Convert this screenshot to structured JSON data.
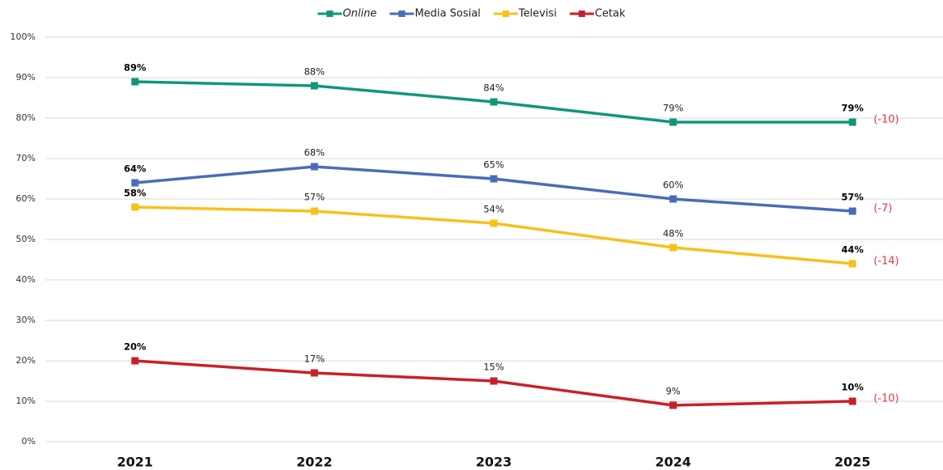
{
  "chart_data": {
    "type": "line",
    "categories": [
      "2021",
      "2022",
      "2023",
      "2024",
      "2025"
    ],
    "series": [
      {
        "name": "Online",
        "color": "#11967a",
        "values": [
          89,
          88,
          84,
          79,
          79
        ],
        "value_labels": [
          "89%",
          "88%",
          "84%",
          "79%",
          "79%"
        ],
        "annotation": "(-10)"
      },
      {
        "name": "Media Sosial",
        "color": "#4a6cb8",
        "values": [
          64,
          68,
          65,
          60,
          57
        ],
        "value_labels": [
          "64%",
          "68%",
          "65%",
          "60%",
          "57%"
        ],
        "annotation": "(-7)"
      },
      {
        "name": "Televisi",
        "color": "#f7c11a",
        "values": [
          58,
          57,
          54,
          48,
          44
        ],
        "value_labels": [
          "58%",
          "57%",
          "54%",
          "48%",
          "44%"
        ],
        "annotation": "(-14)"
      },
      {
        "name": "Cetak",
        "color": "#c8202a",
        "values": [
          20,
          17,
          15,
          9,
          10
        ],
        "value_labels": [
          "20%",
          "17%",
          "15%",
          "9%",
          "10%"
        ],
        "annotation": "(-10)"
      }
    ],
    "ylim": [
      0,
      100
    ],
    "yticks": [
      {
        "value": 0,
        "label": "0%"
      },
      {
        "value": 10,
        "label": "10%"
      },
      {
        "value": 20,
        "label": "20%"
      },
      {
        "value": 30,
        "label": "30%"
      },
      {
        "value": 40,
        "label": "40%"
      },
      {
        "value": 50,
        "label": "50%"
      },
      {
        "value": 60,
        "label": "60%"
      },
      {
        "value": 70,
        "label": "70%"
      },
      {
        "value": 80,
        "label": "80%"
      },
      {
        "value": 90,
        "label": "90%"
      },
      {
        "value": 100,
        "label": "100%"
      }
    ],
    "grid": true,
    "legend": "top"
  }
}
